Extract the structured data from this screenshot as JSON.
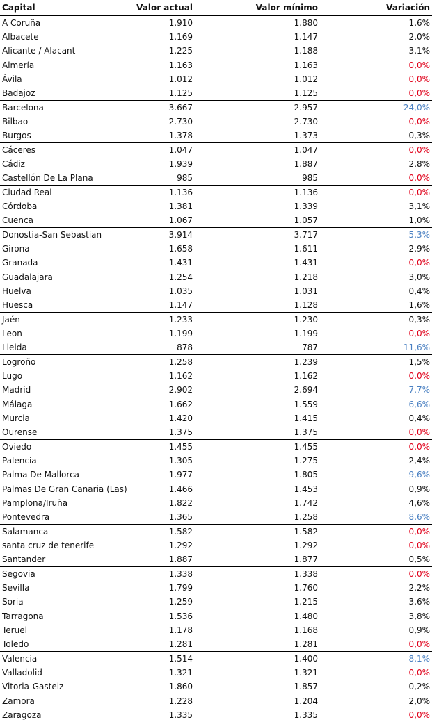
{
  "headers": {
    "capital": "Capital",
    "valor_actual": "Valor actual",
    "valor_minimo": "Valor mínimo",
    "variacion": "Variación"
  },
  "colors": {
    "zero": "#e0001a",
    "high": "#4a80c2",
    "normal": "#111111"
  },
  "rows": [
    {
      "capital": "A Coruña",
      "actual": "1.910",
      "minimo": "1.880",
      "variacion": "1,6%",
      "status": "normal"
    },
    {
      "capital": "Albacete",
      "actual": "1.169",
      "minimo": "1.147",
      "variacion": "2,0%",
      "status": "normal"
    },
    {
      "capital": "Alicante / Alacant",
      "actual": "1.225",
      "minimo": "1.188",
      "variacion": "3,1%",
      "status": "normal",
      "group_end": true
    },
    {
      "capital": "Almería",
      "actual": "1.163",
      "minimo": "1.163",
      "variacion": "0,0%",
      "status": "zero"
    },
    {
      "capital": "Ávila",
      "actual": "1.012",
      "minimo": "1.012",
      "variacion": "0,0%",
      "status": "zero"
    },
    {
      "capital": "Badajoz",
      "actual": "1.125",
      "minimo": "1.125",
      "variacion": "0,0%",
      "status": "zero",
      "group_end": true
    },
    {
      "capital": "Barcelona",
      "actual": "3.667",
      "minimo": "2.957",
      "variacion": "24,0%",
      "status": "high"
    },
    {
      "capital": "Bilbao",
      "actual": "2.730",
      "minimo": "2.730",
      "variacion": "0,0%",
      "status": "zero"
    },
    {
      "capital": "Burgos",
      "actual": "1.378",
      "minimo": "1.373",
      "variacion": "0,3%",
      "status": "normal",
      "group_end": true
    },
    {
      "capital": "Cáceres",
      "actual": "1.047",
      "minimo": "1.047",
      "variacion": "0,0%",
      "status": "zero"
    },
    {
      "capital": "Cádiz",
      "actual": "1.939",
      "minimo": "1.887",
      "variacion": "2,8%",
      "status": "normal"
    },
    {
      "capital": "Castellón De La Plana",
      "actual": "985",
      "minimo": "985",
      "variacion": "0,0%",
      "status": "zero",
      "group_end": true
    },
    {
      "capital": "Ciudad Real",
      "actual": "1.136",
      "minimo": "1.136",
      "variacion": "0,0%",
      "status": "zero"
    },
    {
      "capital": "Córdoba",
      "actual": "1.381",
      "minimo": "1.339",
      "variacion": "3,1%",
      "status": "normal"
    },
    {
      "capital": "Cuenca",
      "actual": "1.067",
      "minimo": "1.057",
      "variacion": "1,0%",
      "status": "normal",
      "group_end": true
    },
    {
      "capital": "Donostia-San Sebastian",
      "actual": "3.914",
      "minimo": "3.717",
      "variacion": "5,3%",
      "status": "high"
    },
    {
      "capital": "Girona",
      "actual": "1.658",
      "minimo": "1.611",
      "variacion": "2,9%",
      "status": "normal"
    },
    {
      "capital": "Granada",
      "actual": "1.431",
      "minimo": "1.431",
      "variacion": "0,0%",
      "status": "zero",
      "group_end": true
    },
    {
      "capital": "Guadalajara",
      "actual": "1.254",
      "minimo": "1.218",
      "variacion": "3,0%",
      "status": "normal"
    },
    {
      "capital": "Huelva",
      "actual": "1.035",
      "minimo": "1.031",
      "variacion": "0,4%",
      "status": "normal"
    },
    {
      "capital": "Huesca",
      "actual": "1.147",
      "minimo": "1.128",
      "variacion": "1,6%",
      "status": "normal",
      "group_end": true
    },
    {
      "capital": "Jaén",
      "actual": "1.233",
      "minimo": "1.230",
      "variacion": "0,3%",
      "status": "normal"
    },
    {
      "capital": "Leon",
      "actual": "1.199",
      "minimo": "1.199",
      "variacion": "0,0%",
      "status": "zero"
    },
    {
      "capital": "Lleida",
      "actual": "878",
      "minimo": "787",
      "variacion": "11,6%",
      "status": "high",
      "group_end": true
    },
    {
      "capital": "Logroño",
      "actual": "1.258",
      "minimo": "1.239",
      "variacion": "1,5%",
      "status": "normal"
    },
    {
      "capital": "Lugo",
      "actual": "1.162",
      "minimo": "1.162",
      "variacion": "0,0%",
      "status": "zero"
    },
    {
      "capital": "Madrid",
      "actual": "2.902",
      "minimo": "2.694",
      "variacion": "7,7%",
      "status": "high",
      "group_end": true
    },
    {
      "capital": "Málaga",
      "actual": "1.662",
      "minimo": "1.559",
      "variacion": "6,6%",
      "status": "high"
    },
    {
      "capital": "Murcia",
      "actual": "1.420",
      "minimo": "1.415",
      "variacion": "0,4%",
      "status": "normal"
    },
    {
      "capital": "Ourense",
      "actual": "1.375",
      "minimo": "1.375",
      "variacion": "0,0%",
      "status": "zero",
      "group_end": true
    },
    {
      "capital": "Oviedo",
      "actual": "1.455",
      "minimo": "1.455",
      "variacion": "0,0%",
      "status": "zero"
    },
    {
      "capital": "Palencia",
      "actual": "1.305",
      "minimo": "1.275",
      "variacion": "2,4%",
      "status": "normal"
    },
    {
      "capital": "Palma De Mallorca",
      "actual": "1.977",
      "minimo": "1.805",
      "variacion": "9,6%",
      "status": "high",
      "group_end": true
    },
    {
      "capital": "Palmas De Gran Canaria (Las)",
      "actual": "1.466",
      "minimo": "1.453",
      "variacion": "0,9%",
      "status": "normal"
    },
    {
      "capital": "Pamplona/Iruña",
      "actual": "1.822",
      "minimo": "1.742",
      "variacion": "4,6%",
      "status": "normal"
    },
    {
      "capital": "Pontevedra",
      "actual": "1.365",
      "minimo": "1.258",
      "variacion": "8,6%",
      "status": "high",
      "group_end": true
    },
    {
      "capital": "Salamanca",
      "actual": "1.582",
      "minimo": "1.582",
      "variacion": "0,0%",
      "status": "zero"
    },
    {
      "capital": "santa cruz de tenerife",
      "actual": "1.292",
      "minimo": "1.292",
      "variacion": "0,0%",
      "status": "zero"
    },
    {
      "capital": "Santander",
      "actual": "1.887",
      "minimo": "1.877",
      "variacion": "0,5%",
      "status": "normal",
      "group_end": true
    },
    {
      "capital": "Segovia",
      "actual": "1.338",
      "minimo": "1.338",
      "variacion": "0,0%",
      "status": "zero"
    },
    {
      "capital": "Sevilla",
      "actual": "1.799",
      "minimo": "1.760",
      "variacion": "2,2%",
      "status": "normal"
    },
    {
      "capital": "Soria",
      "actual": "1.259",
      "minimo": "1.215",
      "variacion": "3,6%",
      "status": "normal",
      "group_end": true
    },
    {
      "capital": "Tarragona",
      "actual": "1.536",
      "minimo": "1.480",
      "variacion": "3,8%",
      "status": "normal"
    },
    {
      "capital": "Teruel",
      "actual": "1.178",
      "minimo": "1.168",
      "variacion": "0,9%",
      "status": "normal"
    },
    {
      "capital": "Toledo",
      "actual": "1.281",
      "minimo": "1.281",
      "variacion": "0,0%",
      "status": "zero",
      "group_end": true
    },
    {
      "capital": "Valencia",
      "actual": "1.514",
      "minimo": "1.400",
      "variacion": "8,1%",
      "status": "high"
    },
    {
      "capital": "Valladolid",
      "actual": "1.321",
      "minimo": "1.321",
      "variacion": "0,0%",
      "status": "zero"
    },
    {
      "capital": "Vitoria-Gasteiz",
      "actual": "1.860",
      "minimo": "1.857",
      "variacion": "0,2%",
      "status": "normal",
      "group_end": true
    },
    {
      "capital": "Zamora",
      "actual": "1.228",
      "minimo": "1.204",
      "variacion": "2,0%",
      "status": "normal"
    },
    {
      "capital": "Zaragoza",
      "actual": "1.335",
      "minimo": "1.335",
      "variacion": "0,0%",
      "status": "zero"
    }
  ]
}
